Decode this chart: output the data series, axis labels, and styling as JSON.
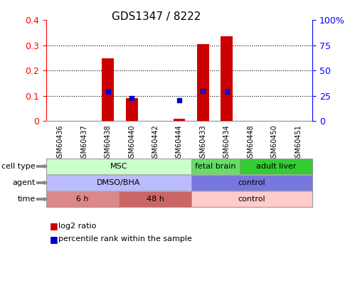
{
  "title": "GDS1347 / 8222",
  "samples": [
    "GSM60436",
    "GSM60437",
    "GSM60438",
    "GSM60440",
    "GSM60442",
    "GSM60444",
    "GSM60433",
    "GSM60434",
    "GSM60448",
    "GSM60450",
    "GSM60451"
  ],
  "log2_ratio": [
    0.0,
    0.0,
    0.25,
    0.09,
    0.0,
    0.01,
    0.305,
    0.335,
    0.0,
    0.0,
    0.0
  ],
  "percentile_rank": [
    null,
    null,
    0.29,
    0.225,
    null,
    0.205,
    0.295,
    0.29,
    null,
    null,
    null
  ],
  "ylim_left": [
    0,
    0.4
  ],
  "ylim_right": [
    0,
    100
  ],
  "yticks_left": [
    0,
    0.1,
    0.2,
    0.3,
    0.4
  ],
  "yticks_right": [
    0,
    25,
    50,
    75,
    100
  ],
  "ytick_labels_left": [
    "0",
    "0.1",
    "0.2",
    "0.3",
    "0.4"
  ],
  "ytick_labels_right": [
    "0",
    "25",
    "50",
    "75",
    "100%"
  ],
  "bar_color": "#cc0000",
  "dot_color": "#0000cc",
  "cell_type_rows": [
    {
      "label": "MSC",
      "start": 0,
      "end": 6,
      "color": "#ccffcc"
    },
    {
      "label": "fetal brain",
      "start": 6,
      "end": 8,
      "color": "#66dd66"
    },
    {
      "label": "adult liver",
      "start": 8,
      "end": 11,
      "color": "#33cc33"
    }
  ],
  "agent_rows": [
    {
      "label": "DMSO/BHA",
      "start": 0,
      "end": 6,
      "color": "#bbbbff"
    },
    {
      "label": "control",
      "start": 6,
      "end": 11,
      "color": "#7777dd"
    }
  ],
  "time_rows": [
    {
      "label": "6 h",
      "start": 0,
      "end": 3,
      "color": "#dd8888"
    },
    {
      "label": "48 h",
      "start": 3,
      "end": 6,
      "color": "#cc6666"
    },
    {
      "label": "control",
      "start": 6,
      "end": 11,
      "color": "#ffcccc"
    }
  ],
  "row_labels": [
    "cell type",
    "agent",
    "time"
  ],
  "legend_red": "log2 ratio",
  "legend_blue": "percentile rank within the sample",
  "bar_width": 0.5,
  "border_color": "#999999"
}
